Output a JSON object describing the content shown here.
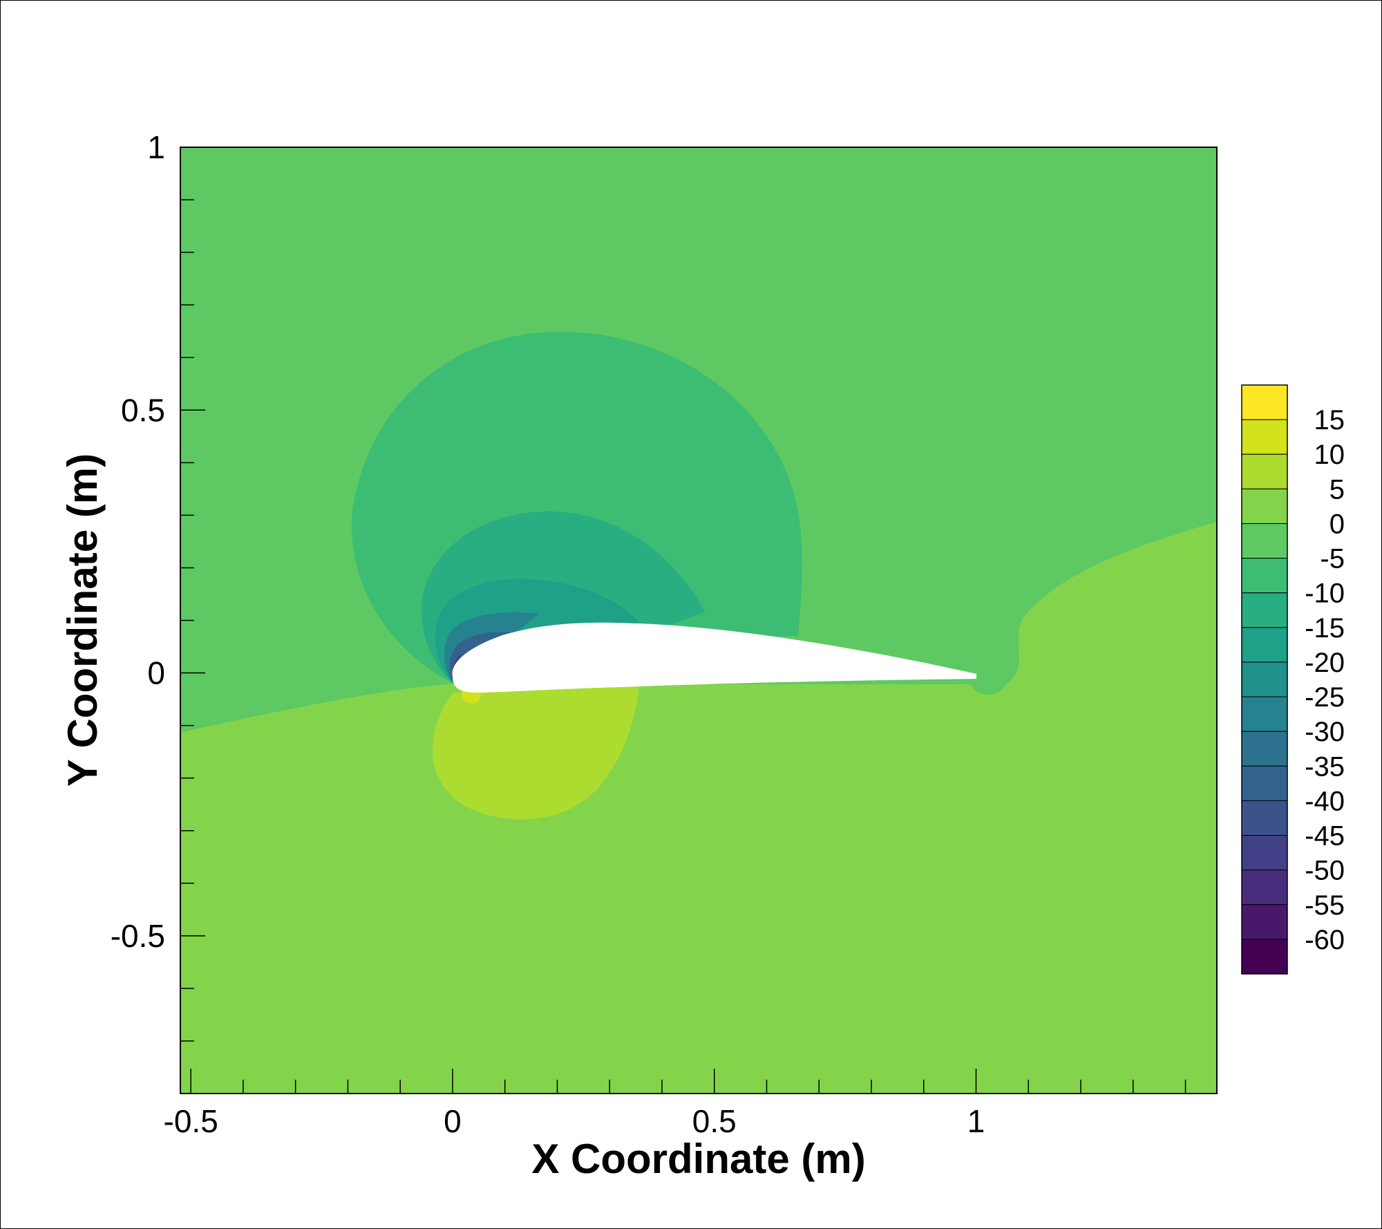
{
  "chart_data": {
    "type": "heatmap",
    "title": "",
    "xlabel": "X Coordinate (m)",
    "ylabel": "Y Coordinate (m)",
    "xlim": [
      -0.52,
      1.46
    ],
    "ylim": [
      -0.8,
      1.0
    ],
    "x_ticks": [
      -0.5,
      0,
      0.5,
      1
    ],
    "x_tick_labels": [
      "-0.5",
      "0",
      "0.5",
      "1"
    ],
    "y_ticks": [
      1,
      0.5,
      0,
      -0.5
    ],
    "y_tick_labels": [
      "1",
      "0.5",
      "0",
      "-0.5"
    ],
    "grid": false,
    "legend": "colorbar at right",
    "colorbar": {
      "levels": [
        15,
        10,
        5,
        0,
        -5,
        -10,
        -15,
        -20,
        -25,
        -30,
        -35,
        -40,
        -45,
        -50,
        -55,
        -60
      ],
      "labels": [
        "15",
        "10",
        "5",
        "0",
        "-5",
        "-10",
        "-15",
        "-20",
        "-25",
        "-30",
        "-35",
        "-40",
        "-45",
        "-50",
        "-55",
        "-60"
      ],
      "colors": [
        "#fde725",
        "#d2e21b",
        "#addc30",
        "#84d44b",
        "#5ec962",
        "#3dbc74",
        "#28ae80",
        "#1fa088",
        "#21918c",
        "#26828e",
        "#2c728e",
        "#33638d",
        "#3b528b",
        "#424086",
        "#472d7b",
        "#48186a",
        "#440154"
      ]
    },
    "regions": [
      {
        "level_band": "0 to 5",
        "color": "#84d44b",
        "description": "lower field"
      },
      {
        "level_band": "-5 to 0",
        "color": "#5ec962",
        "description": "upper field"
      },
      {
        "level_band": "5 to 10",
        "color": "#addc30",
        "description": "pressure-side lobe"
      },
      {
        "level_band": "-10 to -5",
        "color": "#3dbc74",
        "description": "suction-side lobe"
      }
    ],
    "body": "airfoil, chord 0 to 1"
  }
}
